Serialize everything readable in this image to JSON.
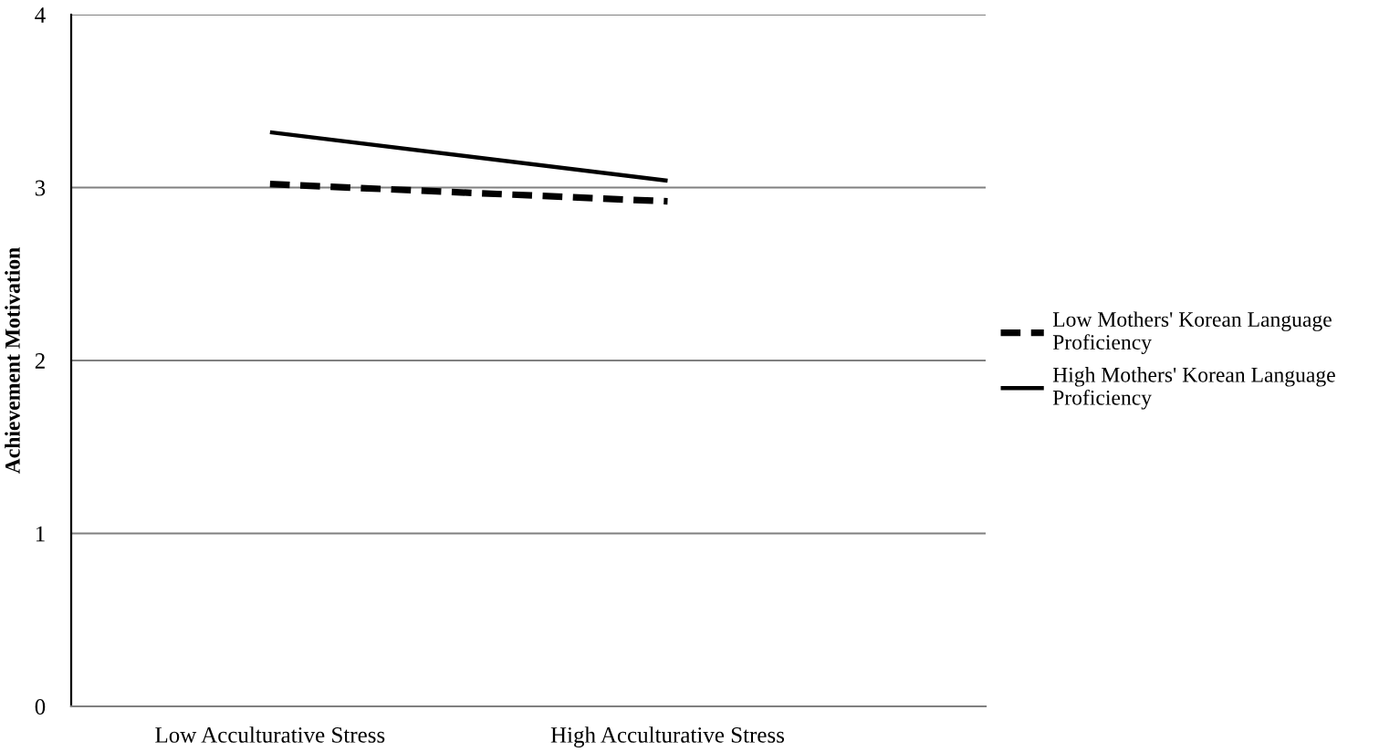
{
  "chart_data": {
    "type": "line",
    "ylabel": "Achievement Motivation",
    "categories": [
      "Low Acculturative Stress",
      "High Acculturative Stress"
    ],
    "series": [
      {
        "name": "Low Mothers' Korean Language Proficiency",
        "color": "#000000",
        "values": [
          3.02,
          2.92
        ],
        "line_style": "dashed"
      },
      {
        "name": "High Mothers' Korean Language Proficiency",
        "color": "#000000",
        "values": [
          3.32,
          3.04
        ],
        "line_style": "solid"
      }
    ],
    "ylim": [
      0,
      4
    ],
    "yticks": [
      0,
      1,
      2,
      3,
      4
    ],
    "grid": "y",
    "legend": "right",
    "marker": "none"
  }
}
